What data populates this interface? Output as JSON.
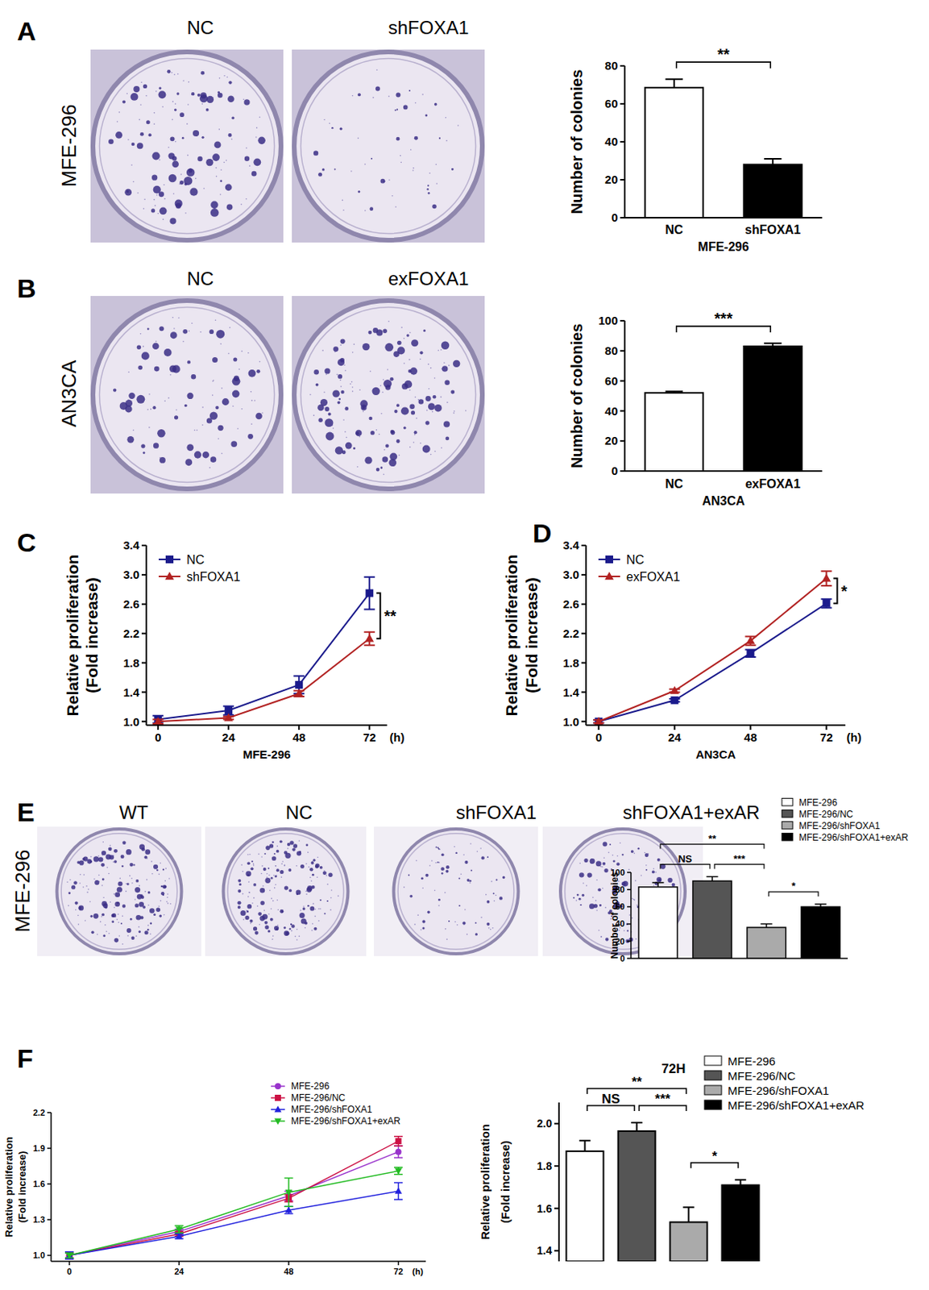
{
  "panels": [
    "A",
    "B",
    "C",
    "D",
    "E",
    "F"
  ],
  "images": [
    {
      "row_label": "MFE-296",
      "plates": [
        "NC",
        "shFOXA1"
      ]
    },
    {
      "row_label": "AN3CA",
      "plates": [
        "NC",
        "exFOXA1"
      ]
    },
    {
      "row_label": "MFE-296",
      "plates": [
        "WT",
        "NC",
        "shFOXA1",
        "shFOXA1+exAR"
      ]
    }
  ],
  "chart_data": [
    {
      "type": "bar",
      "ylabel": "Number of colonies",
      "xlabel": "MFE-296",
      "categories": [
        "NC",
        "shFOXA1"
      ],
      "values": [
        68.5,
        28
      ],
      "errors": [
        4.5,
        3
      ],
      "colors": [
        "#ffffff",
        "#000000"
      ],
      "ylim": [
        0,
        80
      ],
      "yticks": [
        0,
        20,
        40,
        60,
        80
      ],
      "annotations": [
        {
          "text": "**",
          "from": "NC",
          "to": "shFOXA1"
        }
      ]
    },
    {
      "type": "bar",
      "ylabel": "Number of colonies",
      "xlabel": "AN3CA",
      "categories": [
        "NC",
        "exFOXA1"
      ],
      "values": [
        52,
        83
      ],
      "errors": [
        1,
        2
      ],
      "colors": [
        "#ffffff",
        "#000000"
      ],
      "ylim": [
        0,
        100
      ],
      "yticks": [
        0,
        20,
        40,
        60,
        80,
        100
      ],
      "annotations": [
        {
          "text": "***",
          "from": "NC",
          "to": "exFOXA1"
        }
      ]
    },
    {
      "type": "line",
      "ylabel": [
        "Relative proliferation",
        "(Fold increase)"
      ],
      "xlabel": "MFE-296",
      "x_unit": "(h)",
      "x": [
        0,
        24,
        48,
        72
      ],
      "xlim": [
        -4,
        78
      ],
      "xticks": [
        0,
        24,
        48,
        72
      ],
      "ylim": [
        0.95,
        3.4
      ],
      "yticks": [
        {
          "value": 1,
          "label": "1.0"
        },
        1.4,
        1.8,
        2.2,
        2.6,
        {
          "value": 3,
          "label": "3.0"
        },
        3.4
      ],
      "legend": "upper left",
      "series": [
        {
          "name": "NC",
          "color": "#1a1a8c",
          "marker": "square",
          "values": [
            1.03,
            1.15,
            1.5,
            2.75
          ],
          "errors": [
            0.05,
            0.06,
            0.12,
            0.22
          ]
        },
        {
          "name": "shFOXA1",
          "color": "#b22222",
          "marker": "triangle",
          "values": [
            1.0,
            1.05,
            1.38,
            2.13
          ],
          "errors": [
            0.03,
            0.02,
            0.04,
            0.09
          ]
        }
      ],
      "annotations": [
        {
          "text": "**",
          "from": "NC",
          "to": "shFOXA1"
        }
      ]
    },
    {
      "type": "line",
      "ylabel": [
        "Relative proliferation",
        "(Fold increase)"
      ],
      "xlabel": "AN3CA",
      "x_unit": "(h)",
      "x": [
        0,
        24,
        48,
        72
      ],
      "xlim": [
        -4,
        78
      ],
      "xticks": [
        0,
        24,
        48,
        72
      ],
      "ylim": [
        0.95,
        3.4
      ],
      "yticks": [
        {
          "value": 1,
          "label": "1.0"
        },
        1.4,
        1.8,
        2.2,
        2.6,
        {
          "value": 3,
          "label": "3.0"
        },
        3.4
      ],
      "legend": "upper left",
      "series": [
        {
          "name": "NC",
          "color": "#1a1a8c",
          "marker": "square",
          "values": [
            1.0,
            1.29,
            1.93,
            2.61
          ],
          "errors": [
            0.02,
            0.02,
            0.05,
            0.06
          ]
        },
        {
          "name": "exFOXA1",
          "color": "#b22222",
          "marker": "triangle",
          "values": [
            1.0,
            1.42,
            2.1,
            2.95
          ],
          "errors": [
            0.02,
            0.02,
            0.06,
            0.1
          ]
        }
      ],
      "annotations": [
        {
          "text": "*",
          "from": "NC",
          "to": "exFOXA1"
        }
      ]
    },
    {
      "type": "bar",
      "ylabel": "Number of colonies",
      "categories": [
        "MFE-296",
        "MFE-296/NC",
        "MFE-296/shFOXA1",
        "MFE-296/shFOXA1+exAR"
      ],
      "values": [
        83,
        90,
        36,
        60
      ],
      "errors": [
        5,
        5,
        4,
        3
      ],
      "colors": [
        "#ffffff",
        "#555555",
        "#aaaaaa",
        "#000000"
      ],
      "ylim": [
        0,
        100
      ],
      "yticks": [
        0,
        20,
        40,
        60,
        80,
        100
      ],
      "tick_labels": "y",
      "legend": "upper right",
      "annotations": [
        {
          "text": "**",
          "from": "MFE-296",
          "to": "MFE-296/shFOXA1"
        },
        {
          "text": "NS",
          "from": "MFE-296",
          "to": "MFE-296/NC"
        },
        {
          "text": "***",
          "from": "MFE-296/NC",
          "to": "MFE-296/shFOXA1"
        },
        {
          "text": "*",
          "from": "MFE-296/shFOXA1",
          "to": "MFE-296/shFOXA1+exAR"
        }
      ]
    },
    {
      "type": "line",
      "ylabel": [
        "Relative proliferation",
        "(Fold increase)"
      ],
      "x_unit": "(h)",
      "x": [
        0,
        24,
        48,
        72
      ],
      "xlim": [
        -4,
        78
      ],
      "xticks": [
        0,
        24,
        48,
        72
      ],
      "ylim": [
        0.95,
        2.2
      ],
      "yticks": [
        {
          "value": 1,
          "label": "1.0"
        },
        1.3,
        1.6,
        1.9,
        2.2
      ],
      "legend": "upper right",
      "series": [
        {
          "name": "MFE-296",
          "color": "#9933cc",
          "marker": "circle",
          "values": [
            1.0,
            1.2,
            1.5,
            1.87
          ],
          "errors": [
            0.03,
            0.02,
            0.04,
            0.05
          ]
        },
        {
          "name": "MFE-296/NC",
          "color": "#cc1144",
          "marker": "square",
          "values": [
            1.0,
            1.18,
            1.48,
            1.96
          ],
          "errors": [
            0.02,
            0.02,
            0.03,
            0.04
          ]
        },
        {
          "name": "MFE-296/shFOXA1",
          "color": "#2222dd",
          "marker": "triangle",
          "values": [
            1.0,
            1.16,
            1.38,
            1.54
          ],
          "errors": [
            0.03,
            0.02,
            0.03,
            0.07
          ]
        },
        {
          "name": "MFE-296/shFOXA1+exAR",
          "color": "#22bb22",
          "marker": "triangle-down",
          "values": [
            1.0,
            1.22,
            1.53,
            1.71
          ],
          "errors": [
            0.02,
            0.03,
            0.12,
            0.03
          ]
        }
      ]
    },
    {
      "type": "bar",
      "title": "72H",
      "ylabel": [
        "Relative proliferation",
        "(Fold increase)"
      ],
      "categories": [
        "MFE-296",
        "MFE-296/NC",
        "MFE-296/shFOXA1",
        "MFE-296/shFOXA1+exAR"
      ],
      "values": [
        1.87,
        1.965,
        1.535,
        1.71
      ],
      "errors": [
        0.05,
        0.04,
        0.07,
        0.025
      ],
      "colors": [
        "#ffffff",
        "#555555",
        "#aaaaaa",
        "#000000"
      ],
      "ylim": [
        1.35,
        2.1
      ],
      "yticks": [
        1.4,
        1.6,
        1.8,
        {
          "value": 2,
          "label": "2.0"
        }
      ],
      "tick_labels": "y",
      "legend": "upper right",
      "annotations": [
        {
          "text": "**",
          "from": "MFE-296",
          "to": "MFE-296/shFOXA1"
        },
        {
          "text": "NS",
          "from": "MFE-296",
          "to": "MFE-296/NC"
        },
        {
          "text": "***",
          "from": "MFE-296/NC",
          "to": "MFE-296/shFOXA1"
        },
        {
          "text": "*",
          "from": "MFE-296/shFOXA1",
          "to": "MFE-296/shFOXA1+exAR"
        }
      ]
    }
  ]
}
